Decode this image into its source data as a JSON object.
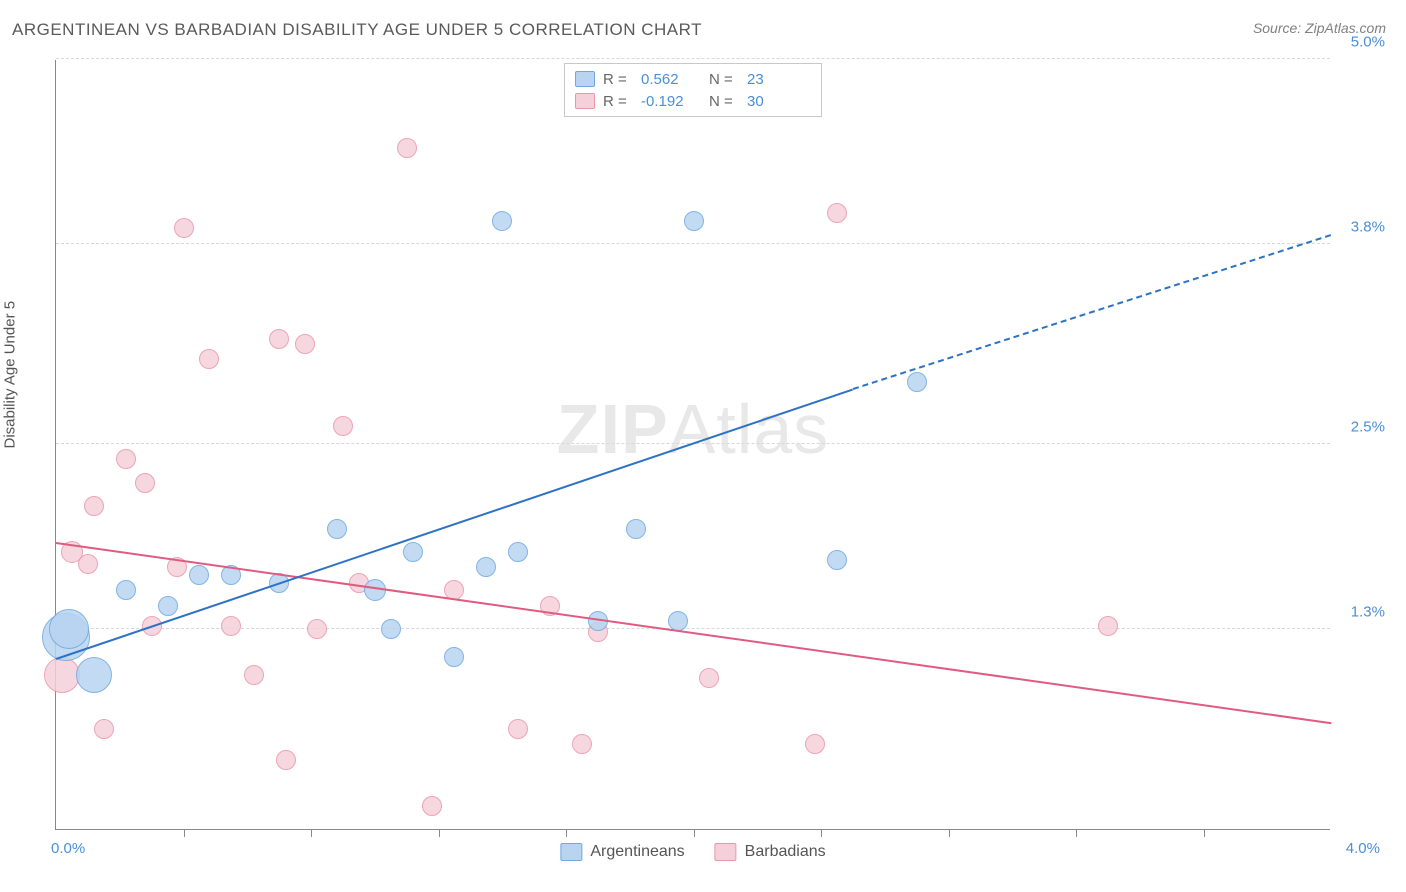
{
  "title": "ARGENTINEAN VS BARBADIAN DISABILITY AGE UNDER 5 CORRELATION CHART",
  "source": "Source: ZipAtlas.com",
  "ylabel": "Disability Age Under 5",
  "watermark_bold": "ZIP",
  "watermark_rest": "Atlas",
  "chart": {
    "type": "scatter",
    "xlim": [
      0,
      4.0
    ],
    "ylim": [
      0,
      5.0
    ],
    "xtick_left": "0.0%",
    "xtick_right": "4.0%",
    "yticks": [
      {
        "v": 1.3,
        "label": "1.3%"
      },
      {
        "v": 2.5,
        "label": "2.5%"
      },
      {
        "v": 3.8,
        "label": "3.8%"
      },
      {
        "v": 5.0,
        "label": "5.0%"
      }
    ],
    "xtick_positions": [
      0.4,
      0.8,
      1.2,
      1.6,
      2.0,
      2.4,
      2.8,
      3.2,
      3.6
    ],
    "background": "#ffffff",
    "grid_color": "#d8d8d8",
    "series": [
      {
        "name": "Argentineans",
        "fill": "#b8d4f0",
        "stroke": "#6da9e0",
        "line_color": "#2e72c4",
        "R": "0.562",
        "N": "23",
        "trend": {
          "x1": 0.0,
          "y1": 1.1,
          "x2": 2.5,
          "y2": 2.85,
          "ext_x2": 4.0,
          "ext_y2": 3.85
        },
        "points": [
          {
            "x": 0.03,
            "y": 1.25,
            "r": 24
          },
          {
            "x": 0.04,
            "y": 1.3,
            "r": 20
          },
          {
            "x": 0.12,
            "y": 1.0,
            "r": 18
          },
          {
            "x": 0.22,
            "y": 1.55,
            "r": 10
          },
          {
            "x": 0.35,
            "y": 1.45,
            "r": 10
          },
          {
            "x": 0.45,
            "y": 1.65,
            "r": 10
          },
          {
            "x": 0.55,
            "y": 1.65,
            "r": 10
          },
          {
            "x": 0.7,
            "y": 1.6,
            "r": 10
          },
          {
            "x": 0.88,
            "y": 1.95,
            "r": 10
          },
          {
            "x": 1.0,
            "y": 1.55,
            "r": 11
          },
          {
            "x": 1.05,
            "y": 1.3,
            "r": 10
          },
          {
            "x": 1.12,
            "y": 1.8,
            "r": 10
          },
          {
            "x": 1.25,
            "y": 1.12,
            "r": 10
          },
          {
            "x": 1.35,
            "y": 1.7,
            "r": 10
          },
          {
            "x": 1.45,
            "y": 1.8,
            "r": 10
          },
          {
            "x": 1.4,
            "y": 3.95,
            "r": 10
          },
          {
            "x": 1.7,
            "y": 1.35,
            "r": 10
          },
          {
            "x": 1.82,
            "y": 1.95,
            "r": 10
          },
          {
            "x": 1.95,
            "y": 1.35,
            "r": 10
          },
          {
            "x": 2.0,
            "y": 3.95,
            "r": 10
          },
          {
            "x": 2.45,
            "y": 1.75,
            "r": 10
          },
          {
            "x": 2.7,
            "y": 2.9,
            "r": 10
          }
        ]
      },
      {
        "name": "Barbadians",
        "fill": "#f5d0da",
        "stroke": "#e996ab",
        "line_color": "#e05b80",
        "R": "-0.192",
        "N": "30",
        "trend": {
          "x1": 0.0,
          "y1": 1.85,
          "x2": 4.0,
          "y2": 0.68
        },
        "points": [
          {
            "x": 0.02,
            "y": 1.0,
            "r": 18
          },
          {
            "x": 0.05,
            "y": 1.8,
            "r": 11
          },
          {
            "x": 0.1,
            "y": 1.72,
            "r": 10
          },
          {
            "x": 0.12,
            "y": 2.1,
            "r": 10
          },
          {
            "x": 0.15,
            "y": 0.65,
            "r": 10
          },
          {
            "x": 0.22,
            "y": 2.4,
            "r": 10
          },
          {
            "x": 0.28,
            "y": 2.25,
            "r": 10
          },
          {
            "x": 0.3,
            "y": 1.32,
            "r": 10
          },
          {
            "x": 0.38,
            "y": 1.7,
            "r": 10
          },
          {
            "x": 0.4,
            "y": 3.9,
            "r": 10
          },
          {
            "x": 0.48,
            "y": 3.05,
            "r": 10
          },
          {
            "x": 0.55,
            "y": 1.32,
            "r": 10
          },
          {
            "x": 0.62,
            "y": 1.0,
            "r": 10
          },
          {
            "x": 0.7,
            "y": 3.18,
            "r": 10
          },
          {
            "x": 0.72,
            "y": 0.45,
            "r": 10
          },
          {
            "x": 0.78,
            "y": 3.15,
            "r": 10
          },
          {
            "x": 0.82,
            "y": 1.3,
            "r": 10
          },
          {
            "x": 0.9,
            "y": 2.62,
            "r": 10
          },
          {
            "x": 0.95,
            "y": 1.6,
            "r": 10
          },
          {
            "x": 1.1,
            "y": 4.42,
            "r": 10
          },
          {
            "x": 1.18,
            "y": 0.15,
            "r": 10
          },
          {
            "x": 1.25,
            "y": 1.55,
            "r": 10
          },
          {
            "x": 1.45,
            "y": 0.65,
            "r": 10
          },
          {
            "x": 1.55,
            "y": 1.45,
            "r": 10
          },
          {
            "x": 1.65,
            "y": 0.55,
            "r": 10
          },
          {
            "x": 1.7,
            "y": 1.28,
            "r": 10
          },
          {
            "x": 2.05,
            "y": 0.98,
            "r": 10
          },
          {
            "x": 2.38,
            "y": 0.55,
            "r": 10
          },
          {
            "x": 2.45,
            "y": 4.0,
            "r": 10
          },
          {
            "x": 3.3,
            "y": 1.32,
            "r": 10
          }
        ]
      }
    ]
  }
}
